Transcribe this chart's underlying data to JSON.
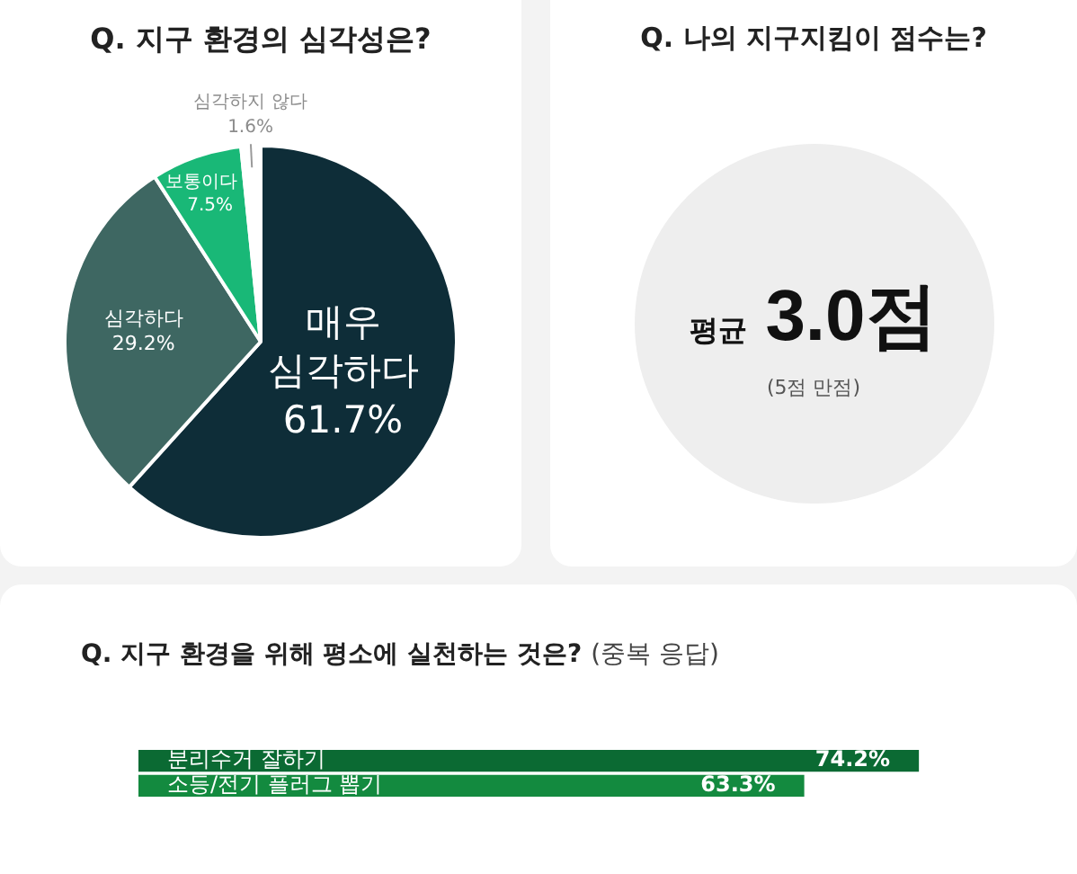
{
  "chart_data": [
    {
      "type": "pie",
      "title": "Q. 지구 환경의 심각성은?",
      "categories": [
        "매우 심각하다",
        "심각하다",
        "보통이다",
        "심각하지 않다"
      ],
      "values": [
        61.7,
        29.2,
        7.5,
        1.6
      ],
      "colors": [
        "#0e2d38",
        "#3e6762",
        "#19b877",
        "#ffffff"
      ],
      "value_labels": [
        "61.7%",
        "29.2%",
        "7.5%",
        "1.6%"
      ]
    },
    {
      "type": "other",
      "title": "Q. 나의 지구지킴이 점수는?",
      "annotations": [
        "평균",
        "3.0점",
        "(5점 만점)"
      ]
    },
    {
      "type": "bar",
      "orientation": "horizontal",
      "title": "Q. 지구 환경을 위해 평소에 실천하는 것은?",
      "subtitle": "(중복 응답)",
      "categories": [
        "분리수거 잘하기",
        "소등/전기 플러그 뽑기"
      ],
      "values": [
        74.2,
        63.3
      ],
      "colors": [
        "#0b6a33",
        "#138a3f"
      ],
      "value_labels": [
        "74.2%",
        "63.3%"
      ],
      "tick_labels": "y"
    }
  ]
}
